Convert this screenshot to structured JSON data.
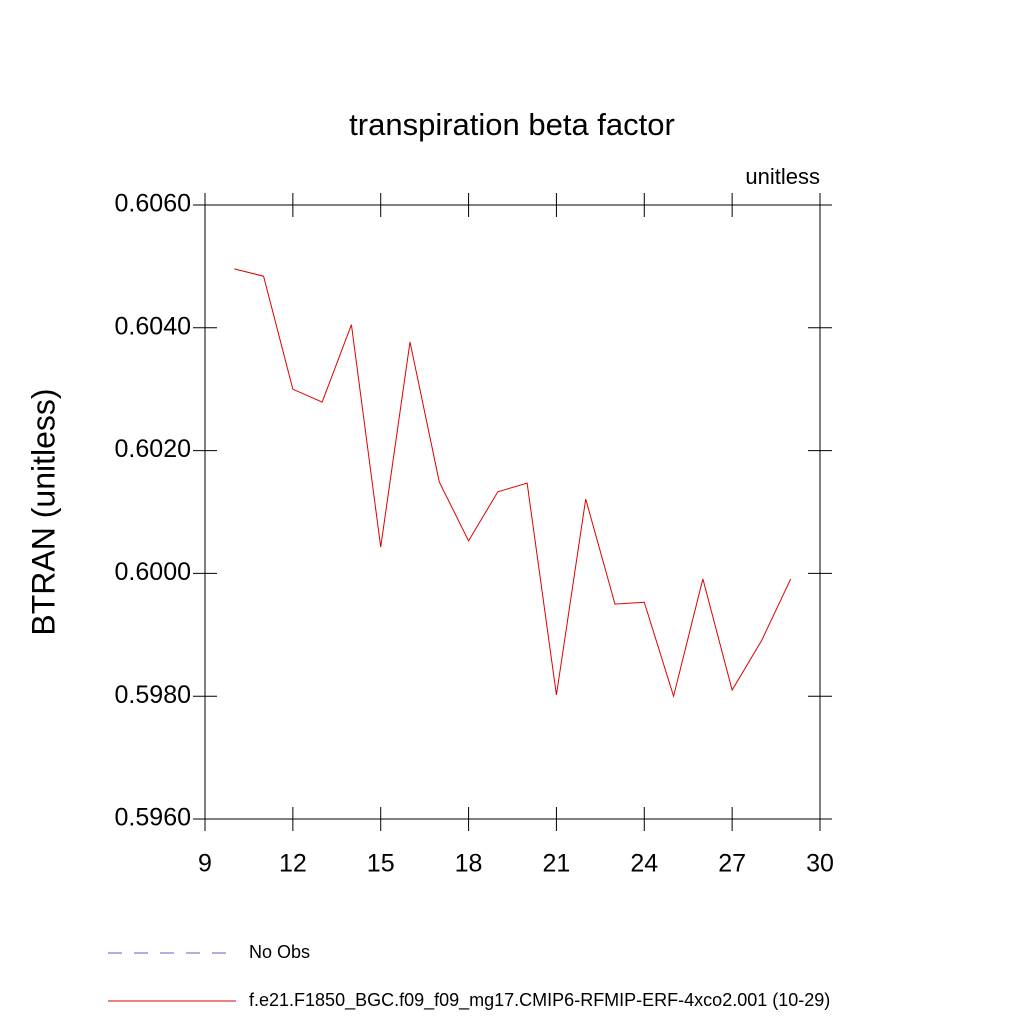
{
  "chart_data": {
    "type": "line",
    "title": "transpiration beta factor",
    "subtitle": "unitless",
    "y_label": "BTRAN  (unitless)",
    "x": [
      10,
      11,
      12,
      13,
      14,
      15,
      16,
      17,
      18,
      19,
      20,
      21,
      22,
      23,
      24,
      25,
      26,
      27,
      28,
      29
    ],
    "series": [
      {
        "name": "No Obs",
        "color": "#6a5acd",
        "dashed": true,
        "values": [
          null,
          null,
          null,
          null,
          null,
          null,
          null,
          null,
          null,
          null,
          null,
          null,
          null,
          null,
          null,
          null,
          null,
          null,
          null,
          null
        ]
      },
      {
        "name": "f.e21.F1850_BGC.f09_f09_mg17.CMIP6-RFMIP-ERF-4xco2.001 (10-29)",
        "color": "#e00000",
        "dashed": false,
        "values": [
          0.60496,
          0.60484,
          0.603,
          0.60279,
          0.60405,
          0.60043,
          0.60377,
          0.60149,
          0.60053,
          0.60133,
          0.60147,
          0.59802,
          0.60121,
          0.5995,
          0.59953,
          0.598,
          0.59991,
          0.5981,
          0.5989,
          0.59991
        ]
      }
    ],
    "xlim": [
      9,
      30
    ],
    "xticks": [
      9,
      12,
      15,
      18,
      21,
      24,
      27,
      30
    ],
    "ylim": [
      0.596,
      0.606
    ],
    "yticks": [
      {
        "value": 0.596,
        "label": "0.5960"
      },
      {
        "value": 0.598,
        "label": "0.5980"
      },
      {
        "value": 0.6,
        "label": "0.6000"
      },
      {
        "value": 0.602,
        "label": "0.6020"
      },
      {
        "value": 0.604,
        "label": "0.6040"
      },
      {
        "value": 0.606,
        "label": "0.6060"
      }
    ],
    "grid": false
  }
}
